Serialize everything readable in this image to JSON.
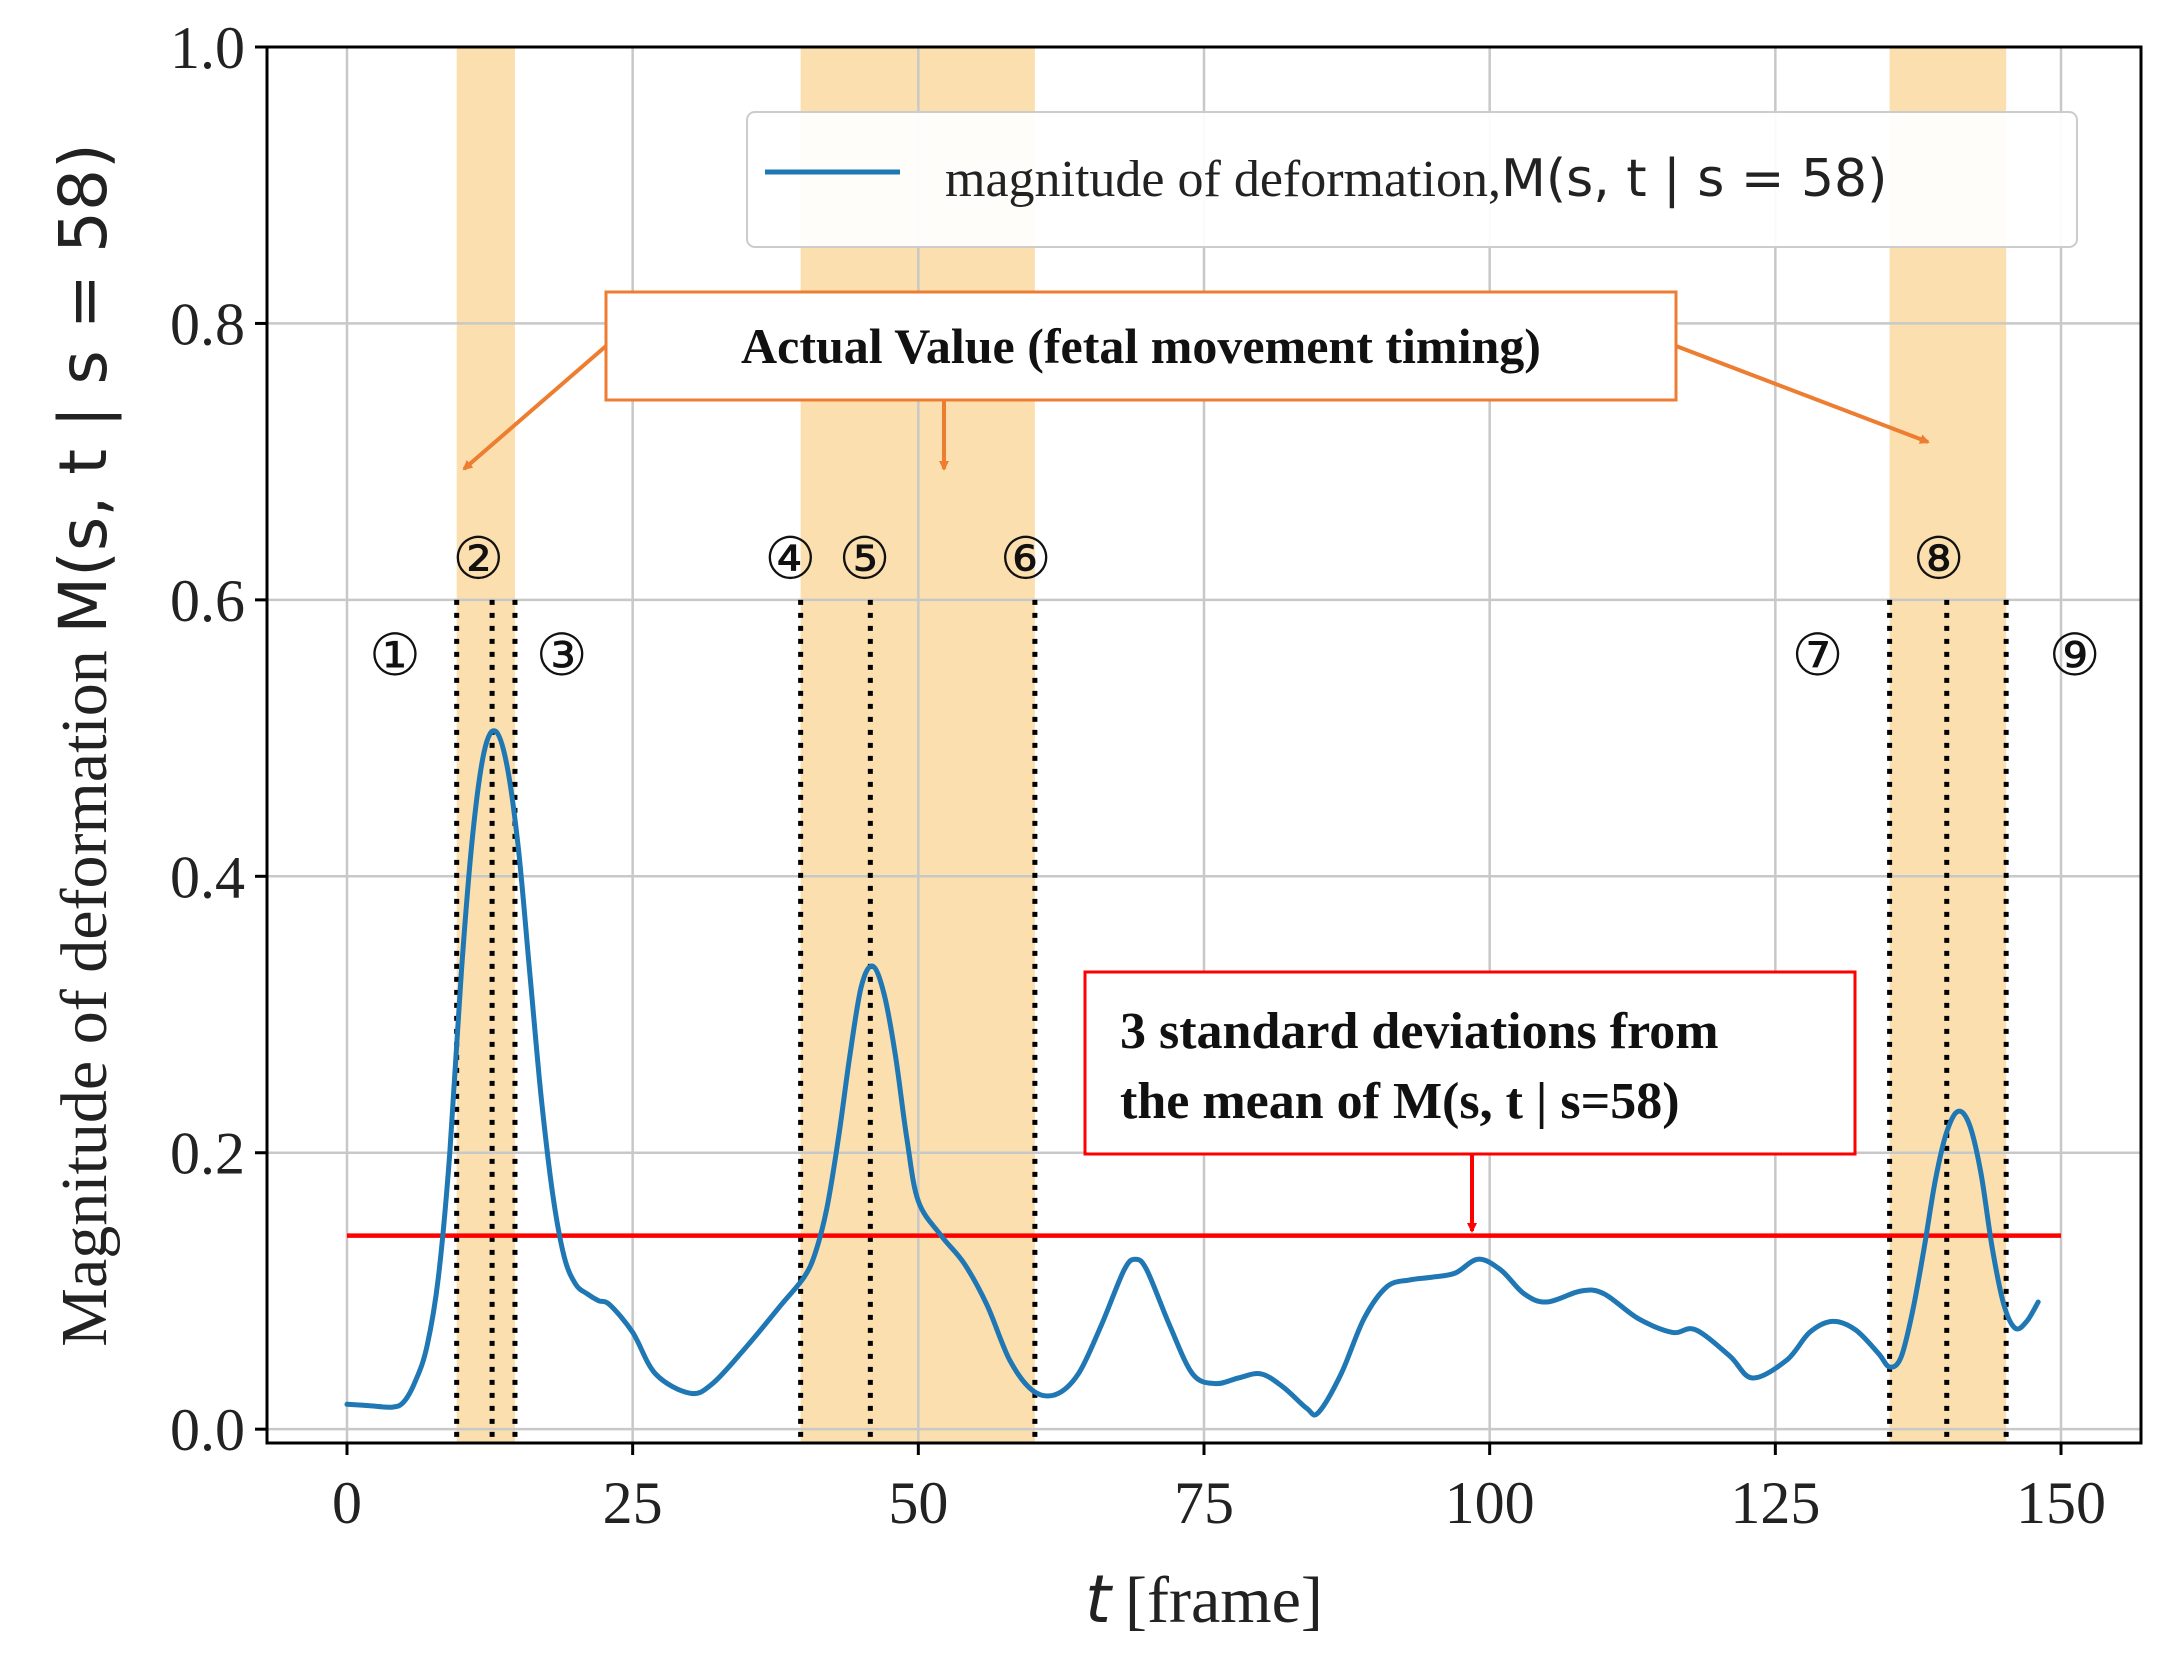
{
  "chart_data": {
    "type": "line",
    "title": "",
    "xlabel": "t [frame]",
    "xlabel_var": "t",
    "xlabel_unit": "[frame]",
    "ylabel": "Magnitude of deformation M(s, t | s = 58)",
    "ylabel_text": "Magnitude of deformation ",
    "ylabel_math": "M(s, t | s = 58)",
    "xlim": [
      -7,
      157
    ],
    "ylim": [
      -0.01,
      1.0
    ],
    "x_ticks": [
      0,
      25,
      50,
      75,
      100,
      125,
      150
    ],
    "x_tick_labels": [
      "0",
      "25",
      "50",
      "75",
      "100",
      "125",
      "150"
    ],
    "y_ticks": [
      0.0,
      0.2,
      0.4,
      0.6,
      0.8,
      1.0
    ],
    "y_tick_labels": [
      "0.0",
      "0.2",
      "0.4",
      "0.6",
      "0.8",
      "1.0"
    ],
    "grid": true,
    "legend_position": "top-right",
    "colors": {
      "series": "#1f77b4",
      "threshold": "#ff0000",
      "band": "#fcd9a0",
      "orange_arrow": "#ed7d31",
      "red_arrow": "#ff0000"
    },
    "series": [
      {
        "name": "magnitude of deformation, M(s, t | s = 58)",
        "legend_text": "magnitude of deformation,",
        "legend_math": "M(s, t | s = 58)",
        "x": [
          0,
          2,
          4,
          5,
          6,
          7,
          8,
          9,
          10,
          11,
          12,
          13,
          14,
          15,
          16,
          17,
          18,
          19,
          20,
          21,
          22,
          23,
          25,
          27,
          30,
          32,
          35,
          38,
          40,
          41,
          42,
          43,
          44,
          45,
          46,
          47,
          48,
          49,
          50,
          52,
          54,
          56,
          58,
          60,
          62,
          64,
          66,
          68,
          69,
          70,
          72,
          74,
          76,
          78,
          80,
          82,
          84,
          85,
          87,
          89,
          91,
          93,
          95,
          97,
          99,
          101,
          103,
          105,
          108,
          110,
          113,
          116,
          118,
          121,
          123,
          126,
          128,
          130,
          132,
          134,
          135,
          136,
          137,
          138,
          139,
          140,
          141,
          142,
          143,
          144,
          145,
          146,
          147,
          148
        ],
        "values": [
          0.018,
          0.017,
          0.016,
          0.02,
          0.035,
          0.06,
          0.11,
          0.2,
          0.33,
          0.43,
          0.49,
          0.505,
          0.48,
          0.42,
          0.33,
          0.24,
          0.17,
          0.125,
          0.105,
          0.098,
          0.093,
          0.09,
          0.07,
          0.04,
          0.026,
          0.033,
          0.06,
          0.09,
          0.11,
          0.128,
          0.16,
          0.21,
          0.27,
          0.32,
          0.335,
          0.315,
          0.27,
          0.21,
          0.165,
          0.14,
          0.12,
          0.09,
          0.05,
          0.028,
          0.025,
          0.04,
          0.075,
          0.115,
          0.123,
          0.115,
          0.075,
          0.04,
          0.033,
          0.037,
          0.04,
          0.03,
          0.015,
          0.012,
          0.04,
          0.08,
          0.103,
          0.108,
          0.11,
          0.113,
          0.123,
          0.115,
          0.098,
          0.092,
          0.1,
          0.098,
          0.08,
          0.07,
          0.072,
          0.053,
          0.037,
          0.05,
          0.07,
          0.078,
          0.072,
          0.055,
          0.045,
          0.052,
          0.085,
          0.13,
          0.18,
          0.215,
          0.23,
          0.22,
          0.185,
          0.13,
          0.09,
          0.073,
          0.078,
          0.092
        ]
      }
    ],
    "threshold": {
      "y": 0.14,
      "x_start": 0,
      "x_end": 150,
      "label": "3 standard deviations from the mean of M(s, t | s=58)"
    },
    "bands": [
      {
        "start": 9.6,
        "end": 14.7
      },
      {
        "start": 39.7,
        "end": 60.2
      },
      {
        "start": 135,
        "end": 145.2
      }
    ],
    "dotted_lines": [
      9.6,
      12.7,
      14.7,
      39.7,
      45.8,
      60.2,
      135,
      140,
      145.2
    ],
    "markers": [
      {
        "label": "①",
        "x": 4.2,
        "y": 0.56
      },
      {
        "label": "②",
        "x": 11.5,
        "y": 0.63
      },
      {
        "label": "③",
        "x": 18.8,
        "y": 0.56
      },
      {
        "label": "④",
        "x": 38.8,
        "y": 0.63
      },
      {
        "label": "⑤",
        "x": 45.3,
        "y": 0.63
      },
      {
        "label": "⑥",
        "x": 59.4,
        "y": 0.63
      },
      {
        "label": "⑦",
        "x": 128.7,
        "y": 0.56
      },
      {
        "label": "⑧",
        "x": 139.3,
        "y": 0.63
      },
      {
        "label": "⑨",
        "x": 151.2,
        "y": 0.56
      }
    ],
    "annotations": {
      "actual_value": "Actual Value (fetal movement timing)",
      "std_line1": "3 standard deviations from",
      "std_line2": "the mean of M(s, t | s=58)"
    }
  }
}
